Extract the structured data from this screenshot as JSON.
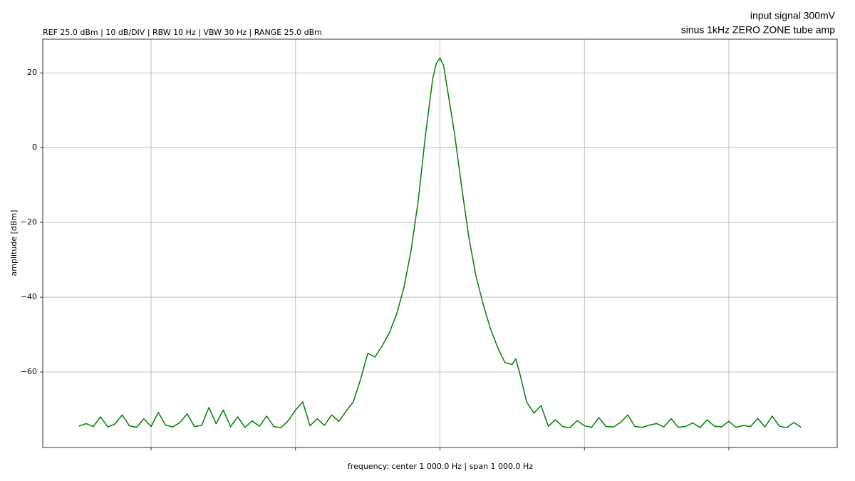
{
  "chart_data": {
    "type": "line",
    "title_lines": [
      "input signal 300mV",
      "sinus 1kHz ZERO ZONE tube amp"
    ],
    "subtitle": "REF 25.0 dBm | 10 dB/DIV | RBW 10 Hz | VBW 30 Hz | RANGE 25.0 dBm",
    "xlabel": "frequency: center 1 000.0 Hz | span 1 000.0 Hz",
    "ylabel": "amplitude [dBm]",
    "xlim": [
      450,
      1550
    ],
    "xticks": [
      600,
      800,
      1000,
      1200,
      1400
    ],
    "ylim": [
      -80.2,
      29
    ],
    "yticks": [
      20,
      0,
      {
        "value": -20,
        "label": "−20"
      },
      {
        "value": -40,
        "label": "−40"
      },
      {
        "value": -60,
        "label": "−60"
      }
    ],
    "grid": true,
    "series": [
      {
        "color": "#008000",
        "x": [
          500,
          510,
          520,
          530,
          540,
          550,
          560,
          570,
          580,
          590,
          600,
          610,
          620,
          630,
          640,
          650,
          660,
          670,
          680,
          690,
          700,
          710,
          720,
          730,
          740,
          750,
          760,
          770,
          780,
          790,
          800,
          810,
          820,
          830,
          840,
          850,
          860,
          870,
          880,
          890,
          900,
          910,
          920,
          930,
          940,
          950,
          960,
          970,
          980,
          990,
          995,
          1000,
          1005,
          1010,
          1020,
          1030,
          1040,
          1050,
          1060,
          1070,
          1080,
          1090,
          1100,
          1105,
          1110,
          1120,
          1130,
          1140,
          1150,
          1160,
          1170,
          1180,
          1190,
          1200,
          1210,
          1220,
          1230,
          1240,
          1250,
          1260,
          1270,
          1280,
          1290,
          1300,
          1310,
          1320,
          1330,
          1340,
          1350,
          1360,
          1370,
          1380,
          1390,
          1400,
          1410,
          1420,
          1430,
          1440,
          1450,
          1460,
          1470,
          1480,
          1490,
          1500
        ],
        "values": [
          -74.5,
          -73.8,
          -74.6,
          -72.0,
          -74.7,
          -73.9,
          -71.5,
          -74.4,
          -74.8,
          -72.5,
          -74.6,
          -70.8,
          -74.2,
          -74.7,
          -73.5,
          -71.2,
          -74.6,
          -74.3,
          -69.5,
          -73.8,
          -70.2,
          -74.6,
          -72.0,
          -74.8,
          -73.1,
          -74.5,
          -71.8,
          -74.6,
          -74.9,
          -73.0,
          -70.2,
          -68.0,
          -74.4,
          -72.5,
          -74.3,
          -71.5,
          -73.2,
          -70.5,
          -68.0,
          -62.0,
          -55.0,
          -56.0,
          -53.0,
          -49.5,
          -44.5,
          -37.5,
          -27.5,
          -14.0,
          3.5,
          18.5,
          22.5,
          24.0,
          22.0,
          16.0,
          4.0,
          -10.5,
          -24.0,
          -34.5,
          -42.0,
          -48.5,
          -53.5,
          -57.5,
          -58.0,
          -56.5,
          -60.0,
          -68.0,
          -71.0,
          -69.0,
          -74.5,
          -72.8,
          -74.6,
          -74.9,
          -73.0,
          -74.4,
          -74.8,
          -72.2,
          -74.6,
          -74.7,
          -73.5,
          -71.5,
          -74.6,
          -74.8,
          -74.2,
          -73.8,
          -74.7,
          -72.5,
          -74.8,
          -74.6,
          -73.6,
          -74.9,
          -72.8,
          -74.5,
          -74.7,
          -73.2,
          -74.8,
          -74.3,
          -74.6,
          -72.4,
          -74.7,
          -71.8,
          -74.5,
          -74.9,
          -73.5,
          -74.8
        ]
      }
    ]
  }
}
